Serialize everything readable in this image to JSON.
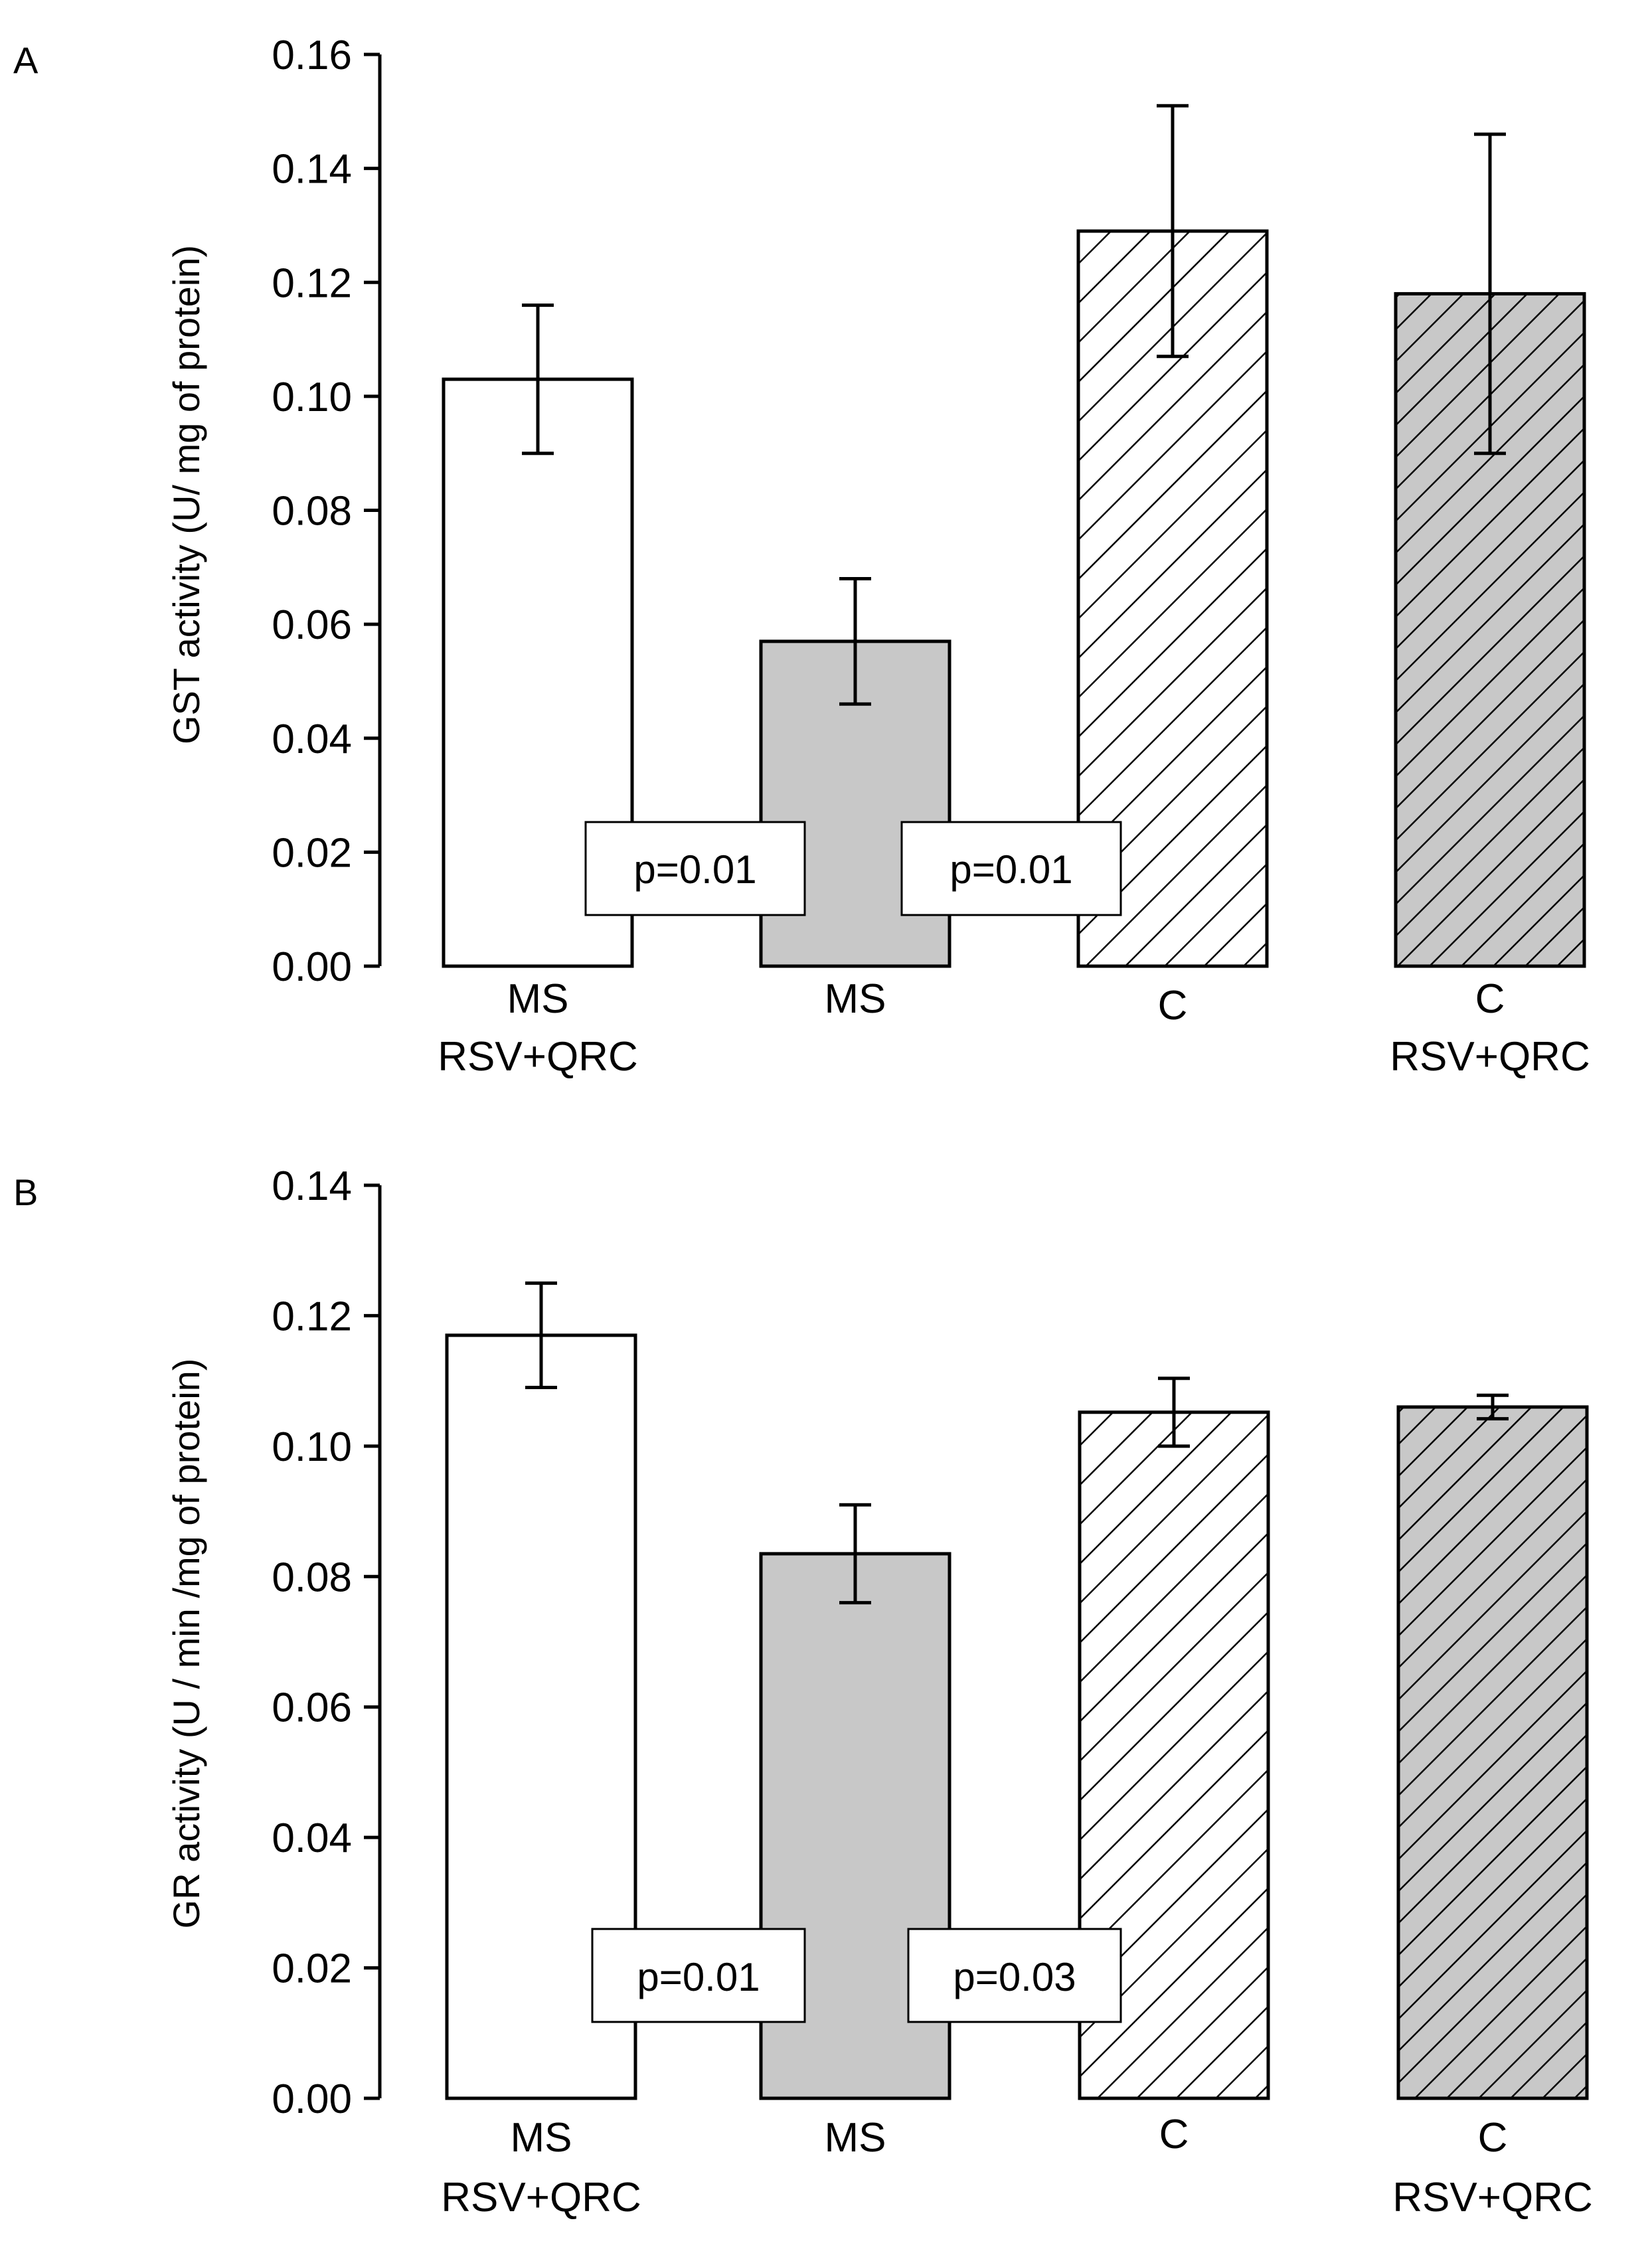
{
  "chart_data": [
    {
      "type": "bar",
      "panel_label": "A",
      "ylabel": "GST activity (U/ mg of protein)",
      "ylim": [
        0,
        0.16
      ],
      "yticks": [
        "0.00",
        "0.02",
        "0.04",
        "0.06",
        "0.08",
        "0.10",
        "0.12",
        "0.14",
        "0.16"
      ],
      "categories": [
        {
          "line1": "MS",
          "line2": "RSV+QRC"
        },
        {
          "line1": "MS",
          "line2": ""
        },
        {
          "line1": "C",
          "line2": ""
        },
        {
          "line1": "C",
          "line2": "RSV+QRC"
        }
      ],
      "values": [
        0.103,
        0.057,
        0.129,
        0.118
      ],
      "errors": [
        0.013,
        0.011,
        0.022,
        0.028
      ],
      "fills": [
        "white",
        "gray",
        "white-hatch",
        "gray-hatch"
      ],
      "annotations": [
        "p=0.01",
        "p=0.01"
      ]
    },
    {
      "type": "bar",
      "panel_label": "B",
      "ylabel": "GR activity (U / min /mg of protein)",
      "ylim": [
        0,
        0.14
      ],
      "yticks": [
        "0.00",
        "0.02",
        "0.04",
        "0.06",
        "0.08",
        "0.10",
        "0.12",
        "0.14"
      ],
      "categories": [
        {
          "line1": "MS",
          "line2": "RSV+QRC"
        },
        {
          "line1": "MS",
          "line2": ""
        },
        {
          "line1": "C",
          "line2": ""
        },
        {
          "line1": "C",
          "line2": "RSV+QRC"
        }
      ],
      "values": [
        0.117,
        0.0835,
        0.1052,
        0.106
      ],
      "errors": [
        0.008,
        0.0075,
        0.0052,
        0.0018
      ],
      "fills": [
        "white",
        "gray",
        "white-hatch",
        "gray-hatch"
      ],
      "annotations": [
        "p=0.01",
        "p=0.03"
      ]
    }
  ],
  "colors": {
    "gray_fill": "#c8c8c8",
    "white_fill": "#ffffff",
    "ink": "#000000"
  }
}
